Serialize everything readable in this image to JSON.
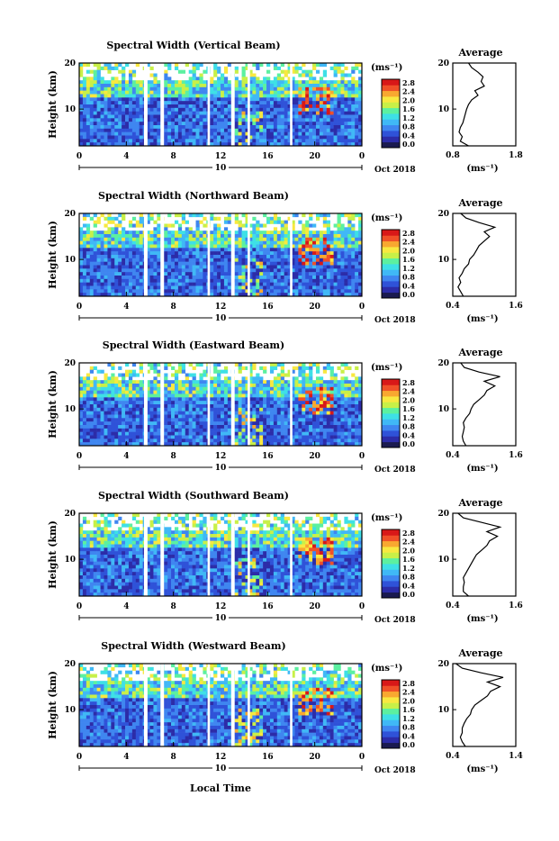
{
  "figure": {
    "bottom_xlabel": "Local Time"
  },
  "colorbar": {
    "unit": "(ms⁻¹)",
    "ticks": [
      "0.0",
      "0.4",
      "0.8",
      "1.2",
      "1.6",
      "2.0",
      "2.4",
      "2.8"
    ],
    "colors": [
      "#1a1a50",
      "#2c2ca8",
      "#2f52d8",
      "#3f86f0",
      "#40b8f6",
      "#3ee0e6",
      "#5cf0a0",
      "#c8f048",
      "#f8e840",
      "#f8a830",
      "#f05028",
      "#d81818"
    ]
  },
  "chart_data": [
    {
      "type": "heatmap",
      "title": "Spectral Width (Vertical Beam)",
      "ylabel": "Height (km)",
      "yticks": [
        "20",
        "10"
      ],
      "ylim": [
        2,
        20
      ],
      "xticks": [
        "0",
        "4",
        "8",
        "12",
        "16",
        "20",
        "0"
      ],
      "date_center": "10",
      "date_right": "Oct 2018",
      "gaps_hours": [
        5.5,
        5.8,
        6.9,
        7.2,
        10.9,
        11.1,
        12.9,
        13.2,
        14.3,
        14.5,
        17.9,
        18.1
      ],
      "colorbar": [
        "0.0",
        "0.4",
        "0.8",
        "1.2",
        "1.6",
        "2.0",
        "2.4",
        "2.8"
      ],
      "profile": {
        "title": "Average",
        "xlabel": "(ms⁻¹)",
        "xticks": [
          "0.8",
          "1.8"
        ],
        "xlim": [
          0.8,
          1.8
        ],
        "yticks": [
          "20",
          "10"
        ],
        "heights_km": [
          2,
          3,
          4,
          5,
          6,
          7,
          8,
          9,
          10,
          11,
          12,
          13,
          14,
          15,
          16,
          17,
          18,
          19,
          20
        ],
        "values": [
          1.05,
          0.92,
          0.95,
          0.9,
          0.92,
          0.96,
          0.98,
          1.0,
          1.02,
          1.05,
          1.1,
          1.2,
          1.15,
          1.3,
          1.25,
          1.28,
          1.2,
          1.1,
          1.05
        ]
      }
    },
    {
      "type": "heatmap",
      "title": "Spectral Width (Northward Beam)",
      "ylabel": "Height (km)",
      "yticks": [
        "20",
        "10"
      ],
      "ylim": [
        2,
        20
      ],
      "xticks": [
        "0",
        "4",
        "8",
        "12",
        "16",
        "20",
        "0"
      ],
      "date_center": "10",
      "date_right": "Oct 2018",
      "gaps_hours": [
        5.5,
        5.8,
        6.9,
        7.2,
        10.9,
        11.1,
        12.9,
        13.2,
        14.3,
        14.5,
        17.9,
        18.1
      ],
      "colorbar": [
        "0.0",
        "0.4",
        "0.8",
        "1.2",
        "1.6",
        "2.0",
        "2.4",
        "2.8"
      ],
      "profile": {
        "title": "Average",
        "xlabel": "(ms⁻¹)",
        "xticks": [
          "0.4",
          "1.6"
        ],
        "xlim": [
          0.4,
          1.6
        ],
        "yticks": [
          "20",
          "10"
        ],
        "heights_km": [
          2,
          3,
          4,
          5,
          6,
          7,
          8,
          9,
          10,
          11,
          12,
          13,
          14,
          15,
          16,
          17,
          18,
          19,
          20
        ],
        "values": [
          0.6,
          0.55,
          0.5,
          0.55,
          0.52,
          0.58,
          0.62,
          0.7,
          0.72,
          0.8,
          0.85,
          0.9,
          1.0,
          1.1,
          1.0,
          1.2,
          0.9,
          0.65,
          0.55
        ]
      }
    },
    {
      "type": "heatmap",
      "title": "Spectral Width (Eastward Beam)",
      "ylabel": "Height (km)",
      "yticks": [
        "20",
        "10"
      ],
      "ylim": [
        2,
        20
      ],
      "xticks": [
        "0",
        "4",
        "8",
        "12",
        "16",
        "20",
        "0"
      ],
      "date_center": "10",
      "date_right": "Oct 2018",
      "gaps_hours": [
        5.5,
        5.8,
        6.9,
        7.2,
        10.9,
        11.1,
        12.9,
        13.2,
        14.3,
        14.5,
        17.9,
        18.1
      ],
      "colorbar": [
        "0.0",
        "0.4",
        "0.8",
        "1.2",
        "1.6",
        "2.0",
        "2.4",
        "2.8"
      ],
      "profile": {
        "title": "Average",
        "xlabel": "(ms⁻¹)",
        "xticks": [
          "0.4",
          "1.6"
        ],
        "xlim": [
          0.4,
          1.6
        ],
        "yticks": [
          "20",
          "10"
        ],
        "heights_km": [
          2,
          3,
          4,
          5,
          6,
          7,
          8,
          9,
          10,
          11,
          12,
          13,
          14,
          15,
          16,
          17,
          18,
          19,
          20
        ],
        "values": [
          0.65,
          0.6,
          0.58,
          0.6,
          0.62,
          0.6,
          0.65,
          0.72,
          0.75,
          0.8,
          0.9,
          1.0,
          1.05,
          1.2,
          1.0,
          1.3,
          0.9,
          0.62,
          0.55
        ]
      }
    },
    {
      "type": "heatmap",
      "title": "Spectral Width (Southward Beam)",
      "ylabel": "Height (km)",
      "yticks": [
        "20",
        "10"
      ],
      "ylim": [
        2,
        20
      ],
      "xticks": [
        "0",
        "4",
        "8",
        "12",
        "16",
        "20",
        "0"
      ],
      "date_center": "10",
      "date_right": "Oct 2018",
      "gaps_hours": [
        5.5,
        5.8,
        6.9,
        7.2,
        10.9,
        11.1,
        12.9,
        13.2,
        14.3,
        14.5,
        17.9,
        18.1
      ],
      "colorbar": [
        "0.0",
        "0.4",
        "0.8",
        "1.2",
        "1.6",
        "2.0",
        "2.4",
        "2.8"
      ],
      "profile": {
        "title": "Average",
        "xlabel": "(ms⁻¹)",
        "xticks": [
          "0.4",
          "1.6"
        ],
        "xlim": [
          0.4,
          1.6
        ],
        "yticks": [
          "20",
          "10"
        ],
        "heights_km": [
          2,
          3,
          4,
          5,
          6,
          7,
          8,
          9,
          10,
          11,
          12,
          13,
          14,
          15,
          16,
          17,
          18,
          19,
          20
        ],
        "values": [
          0.7,
          0.6,
          0.6,
          0.62,
          0.6,
          0.65,
          0.7,
          0.75,
          0.8,
          0.85,
          0.95,
          1.05,
          1.1,
          1.25,
          1.05,
          1.3,
          0.95,
          0.6,
          0.5
        ]
      }
    },
    {
      "type": "heatmap",
      "title": "Spectral Width (Westward Beam)",
      "ylabel": "Height (km)",
      "yticks": [
        "20",
        "10"
      ],
      "ylim": [
        2,
        20
      ],
      "xticks": [
        "0",
        "4",
        "8",
        "12",
        "16",
        "20",
        "0"
      ],
      "date_center": "10",
      "date_right": "Oct 2018",
      "gaps_hours": [
        5.5,
        5.8,
        6.9,
        7.2,
        10.9,
        11.1,
        12.9,
        13.2,
        14.3,
        14.5,
        17.9,
        18.1
      ],
      "colorbar": [
        "0.0",
        "0.4",
        "0.8",
        "1.2",
        "1.6",
        "2.0",
        "2.4",
        "2.8"
      ],
      "profile": {
        "title": "Average",
        "xlabel": "(ms⁻¹)",
        "xticks": [
          "0.4",
          "1.4"
        ],
        "xlim": [
          0.4,
          1.4
        ],
        "yticks": [
          "20",
          "10"
        ],
        "heights_km": [
          2,
          3,
          4,
          5,
          6,
          7,
          8,
          9,
          10,
          11,
          12,
          13,
          14,
          15,
          16,
          17,
          18,
          19,
          20
        ],
        "values": [
          0.6,
          0.55,
          0.52,
          0.55,
          0.55,
          0.58,
          0.62,
          0.68,
          0.7,
          0.75,
          0.85,
          0.95,
          1.0,
          1.15,
          0.95,
          1.2,
          0.85,
          0.55,
          0.45
        ]
      }
    }
  ]
}
